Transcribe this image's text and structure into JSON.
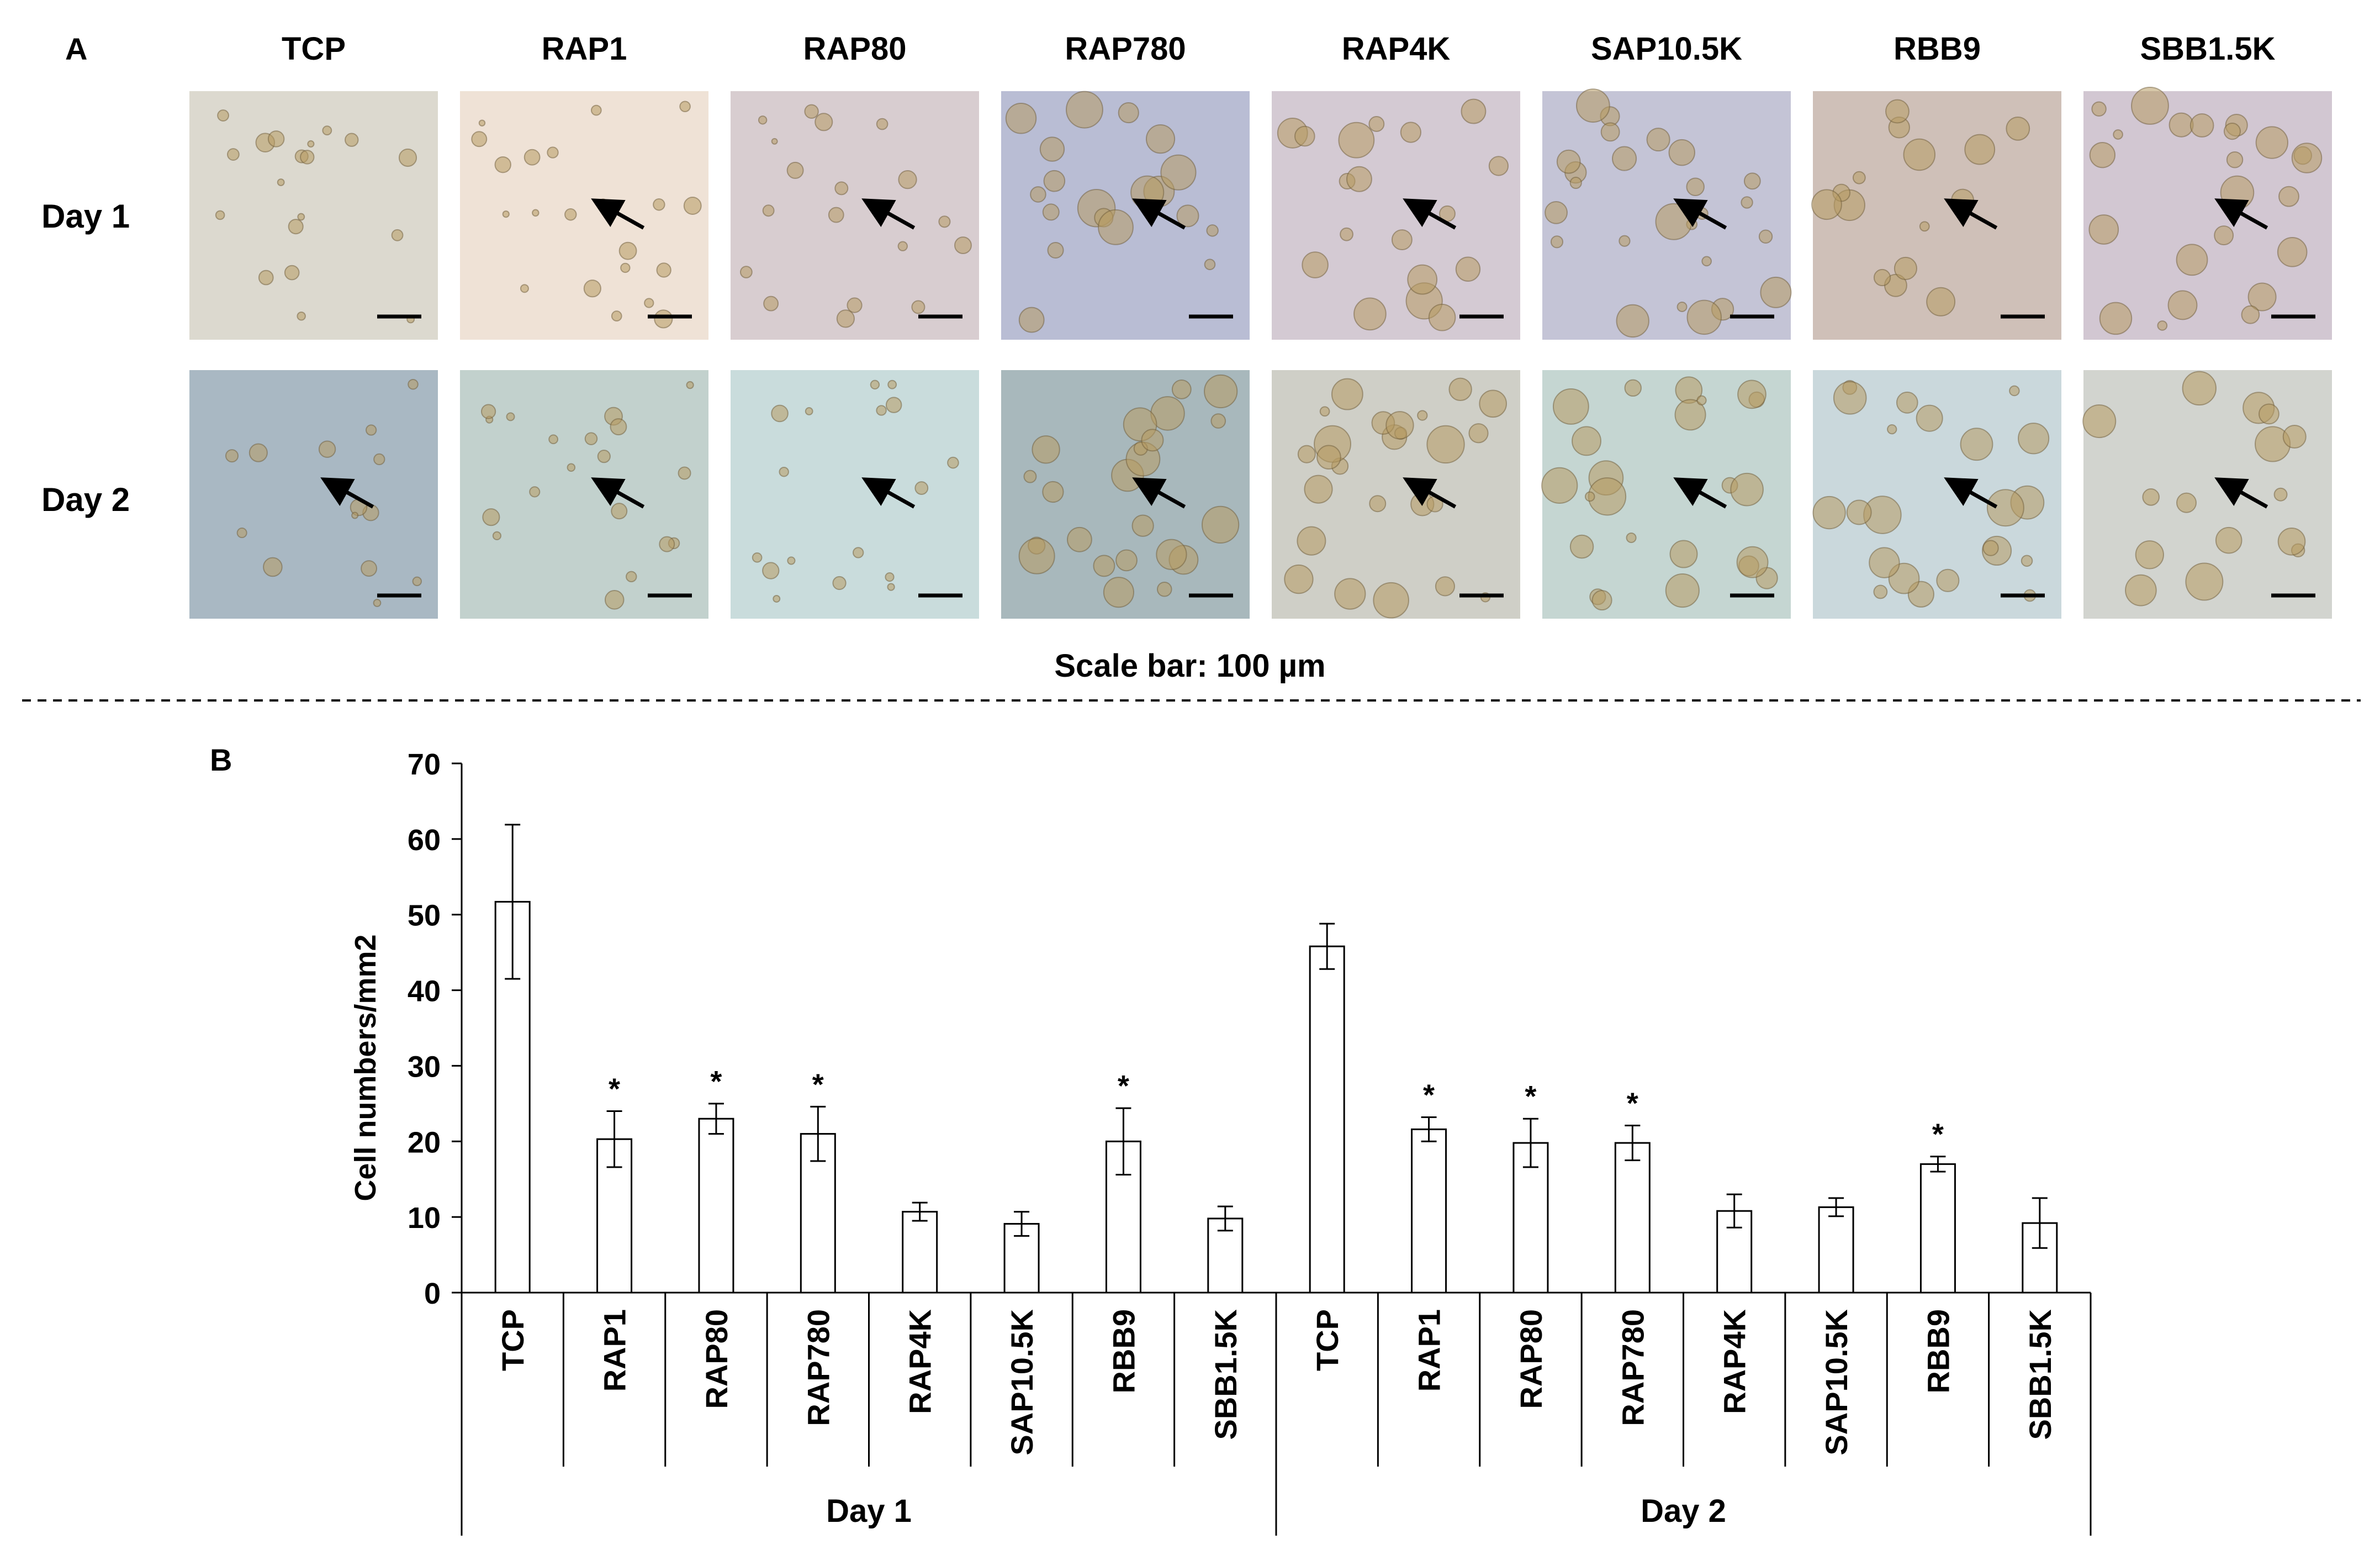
{
  "panel_a": {
    "label": "A",
    "columns": [
      "TCP",
      "RAP1",
      "RAP80",
      "RAP780",
      "RAP4K",
      "SAP10.5K",
      "RBB9",
      "SBB1.5K"
    ],
    "rows": [
      "Day 1",
      "Day 2"
    ],
    "scale_note": "Scale bar: 100 µm",
    "tints": {
      "day1": [
        "#dcd9cf",
        "#efe2d6",
        "#d8cdd0",
        "#b9bdd4",
        "#d4cad3",
        "#c4c4d6",
        "#cfc0b8",
        "#d2c7d2"
      ],
      "day2": [
        "#a9b8c3",
        "#c2d1cd",
        "#c9dcdc",
        "#a8b8bc",
        "#cfcfc7",
        "#c5d6d2",
        "#cad8dc",
        "#d2d4cf"
      ]
    },
    "cluster_colors": {
      "cell": "#b79a63",
      "outline": "#6e5c3a"
    },
    "arrows": {
      "day1": [
        false,
        true,
        true,
        true,
        true,
        true,
        true,
        true
      ],
      "day2": [
        true,
        true,
        true,
        true,
        true,
        true,
        true,
        true
      ]
    }
  },
  "panel_b": {
    "label": "B"
  },
  "chart_data": {
    "type": "bar",
    "title": "",
    "ylabel": "Cell numbers/mm2",
    "xlabel": "",
    "ylim": [
      0,
      70
    ],
    "yticks": [
      0,
      10,
      20,
      30,
      40,
      50,
      60,
      70
    ],
    "groups": [
      {
        "name": "Day 1",
        "categories": [
          "TCP",
          "RAP1",
          "RAP80",
          "RAP780",
          "RAP4K",
          "SAP10.5K",
          "RBB9",
          "SBB1.5K"
        ],
        "values": [
          51.7,
          20.3,
          23.0,
          21.0,
          10.7,
          9.1,
          20.0,
          9.8
        ],
        "errors": [
          10.2,
          3.7,
          2.0,
          3.6,
          1.2,
          1.6,
          4.4,
          1.6
        ],
        "significant": [
          false,
          true,
          true,
          true,
          false,
          false,
          true,
          false
        ]
      },
      {
        "name": "Day 2",
        "categories": [
          "TCP",
          "RAP1",
          "RAP80",
          "RAP780",
          "RAP4K",
          "SAP10.5K",
          "RBB9",
          "SBB1.5K"
        ],
        "values": [
          45.8,
          21.6,
          19.8,
          19.8,
          10.8,
          11.3,
          17.0,
          9.2
        ],
        "errors": [
          3.0,
          1.6,
          3.2,
          2.3,
          2.2,
          1.2,
          1.0,
          3.3
        ],
        "significant": [
          false,
          true,
          true,
          true,
          false,
          false,
          true,
          false
        ]
      }
    ],
    "significance_marker": "*",
    "bar_fill": "#ffffff",
    "bar_stroke": "#000000"
  }
}
